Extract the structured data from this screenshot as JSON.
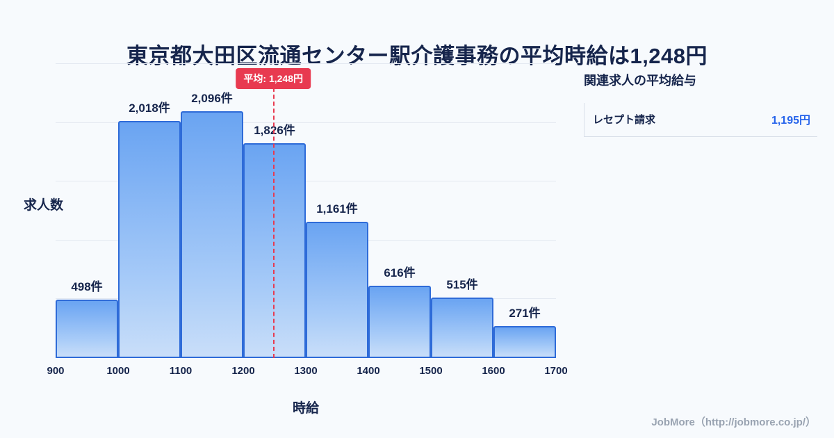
{
  "title": "東京都大田区流通センター駅介護事務の平均時給は1,248円",
  "chart_data": {
    "type": "bar",
    "subtype": "histogram",
    "title": "東京都大田区流通センター駅介護事務の平均時給は1,248円",
    "xlabel": "時給",
    "ylabel": "求人数",
    "bin_edges": [
      900,
      1000,
      1100,
      1200,
      1300,
      1400,
      1500,
      1600,
      1700
    ],
    "values": [
      498,
      2018,
      2096,
      1826,
      1161,
      616,
      515,
      271
    ],
    "bar_labels": [
      "498件",
      "2,018件",
      "2,096件",
      "1,826件",
      "1,161件",
      "616件",
      "515件",
      "271件"
    ],
    "xlim": [
      900,
      1700
    ],
    "ylim": [
      0,
      2500
    ],
    "grid_step": 500,
    "grid": "horizontal",
    "legend_position": "none",
    "average": {
      "value": 1248,
      "label": "平均: 1,248円"
    },
    "colors": {
      "bar_border": "#2e6bd8",
      "bar_fill_top": "#6aa4f2",
      "bar_fill_bottom": "#c9def9",
      "average_line": "#e83a50",
      "title_text": "#16254c",
      "value_accent": "#2563eb"
    }
  },
  "side_panel": {
    "heading": "関連求人の平均給与",
    "rows": [
      {
        "label": "レセプト請求",
        "value": "1,195円"
      }
    ]
  },
  "footer": {
    "credit": "JobMore（http://jobmore.co.jp/）"
  }
}
